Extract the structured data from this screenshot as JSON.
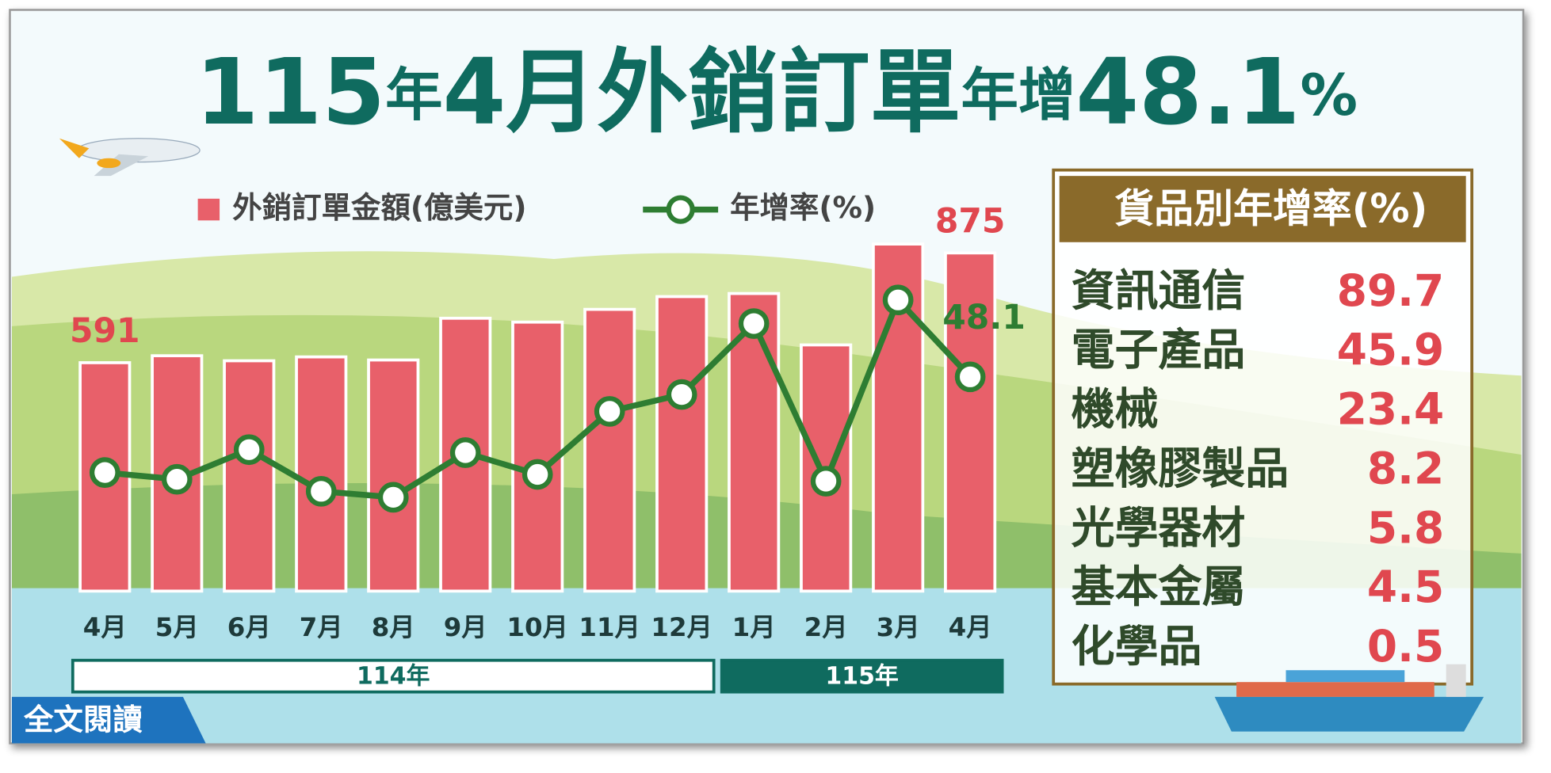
{
  "title": [
    "115",
    "年",
    "4月",
    "外銷訂單",
    "年增",
    "48.1",
    "%"
  ],
  "chart_data": {
    "type": "bar-line",
    "categories": [
      "4月",
      "5月",
      "6月",
      "7月",
      "8月",
      "9月",
      "10月",
      "11月",
      "12月",
      "1月",
      "2月",
      "3月",
      "4月"
    ],
    "year_groups": [
      "114年",
      "115年"
    ],
    "series": [
      {
        "name": "外銷訂單金額(億美元)",
        "type": "bar",
        "color": "#e8606a",
        "label_color": "#e0474f",
        "values": [
          591,
          609,
          596,
          606,
          598,
          706,
          696,
          729,
          762,
          770,
          637,
          898,
          875
        ],
        "labeled": [
          0,
          12
        ]
      },
      {
        "name": "年增率(%)",
        "type": "line",
        "axis": "y2",
        "color": "#2e7d32",
        "label_color": "#2e7d32",
        "values": [
          22.6,
          20.8,
          28.7,
          17.6,
          16.0,
          27.9,
          22.1,
          38.9,
          43.4,
          62.3,
          20.3,
          68.6,
          48.1
        ],
        "labeled": [
          12
        ]
      }
    ],
    "ylim": [
      0,
      1000
    ],
    "y2lim": [
      -9,
      94
    ],
    "grid": false
  },
  "goods_table": {
    "title": "貨品別年增率(%)",
    "rows": [
      [
        "資訊通信",
        "89.7"
      ],
      [
        "電子產品",
        "45.9"
      ],
      [
        "機械",
        "23.4"
      ],
      [
        "塑橡膠製品",
        "8.2"
      ],
      [
        "光學器材",
        "5.8"
      ],
      [
        "基本金屬",
        "4.5"
      ],
      [
        "化學品",
        "0.5"
      ]
    ]
  },
  "read_more": "全文閱讀"
}
